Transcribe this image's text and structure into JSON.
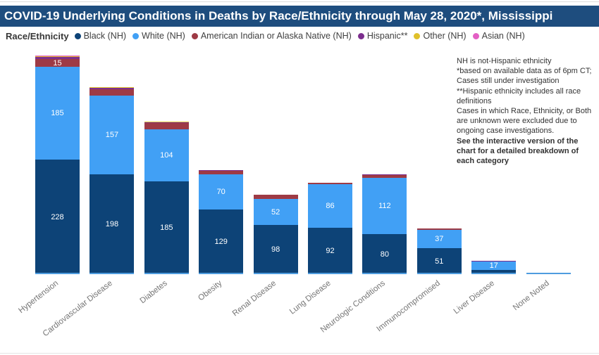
{
  "title": {
    "text": "COVID-19 Underlying Conditions in Deaths by Race/Ethnicity through May 28, 2020*, Mississippi",
    "bar_color": "#1E4D7E",
    "text_color": "#FFFFFF"
  },
  "legend": {
    "label": "Race/Ethnicity",
    "items": [
      {
        "name": "Black (NH)",
        "color": "#0D4377"
      },
      {
        "name": "White (NH)",
        "color": "#41A0F5"
      },
      {
        "name": "American Indian or Alaska Native (NH)",
        "color": "#9E3A45"
      },
      {
        "name": "Hispanic**",
        "color": "#7C2E8E"
      },
      {
        "name": "Other (NH)",
        "color": "#E0C12A"
      },
      {
        "name": "Asian (NH)",
        "color": "#E35FC4"
      }
    ]
  },
  "notes": {
    "lines": [
      {
        "text": "NH is not-Hispanic ethnicity",
        "bold": false
      },
      {
        "text": "*based on available data as of 6pm CT; Cases still under investigation",
        "bold": false
      },
      {
        "text": "**Hispanic ethnicity includes all race definitions",
        "bold": false
      },
      {
        "text": "Cases in which Race, Ethnicity, or Both are unknown were excluded due to ongoing case investigations.",
        "bold": false
      },
      {
        "text": "See the interactive version of the chart for a detailed breakdown of each category",
        "bold": true
      }
    ]
  },
  "chart_data": {
    "type": "bar",
    "stacked": true,
    "title": "COVID-19 Underlying Conditions in Deaths by Race/Ethnicity through May 28, 2020*, Mississippi",
    "xlabel": "",
    "ylabel": "",
    "y_axis_visible": false,
    "legend_position": "top",
    "label_min": 15,
    "categories": [
      "Hypertension",
      "Cardiovascular Disease",
      "Diabetes",
      "Obesity",
      "Renal Disease",
      "Lung Disease",
      "Neurologic Conditions",
      "Immunocompromised",
      "Liver Disease",
      "None Noted"
    ],
    "series": [
      {
        "name": "Black (NH)",
        "color": "#0D4377",
        "values": [
          228,
          198,
          185,
          129,
          98,
          92,
          80,
          51,
          8,
          0
        ]
      },
      {
        "name": "White (NH)",
        "color": "#41A0F5",
        "values": [
          185,
          157,
          104,
          70,
          52,
          86,
          112,
          37,
          17,
          2
        ]
      },
      {
        "name": "American Indian or Alaska Native (NH)",
        "color": "#9E3A45",
        "values": [
          15,
          13,
          12,
          7,
          8,
          3,
          5,
          3,
          0,
          0
        ]
      },
      {
        "name": "Hispanic**",
        "color": "#7C2E8E",
        "values": [
          4,
          3,
          2,
          2,
          0,
          0,
          1,
          0,
          2,
          0
        ]
      },
      {
        "name": "Other (NH)",
        "color": "#E0C12A",
        "values": [
          1,
          1,
          1,
          0,
          0,
          0,
          0,
          0,
          0,
          2
        ]
      },
      {
        "name": "Asian (NH)",
        "color": "#E35FC4",
        "values": [
          1,
          0,
          0,
          0,
          0,
          0,
          0,
          0,
          0,
          0
        ]
      }
    ]
  }
}
